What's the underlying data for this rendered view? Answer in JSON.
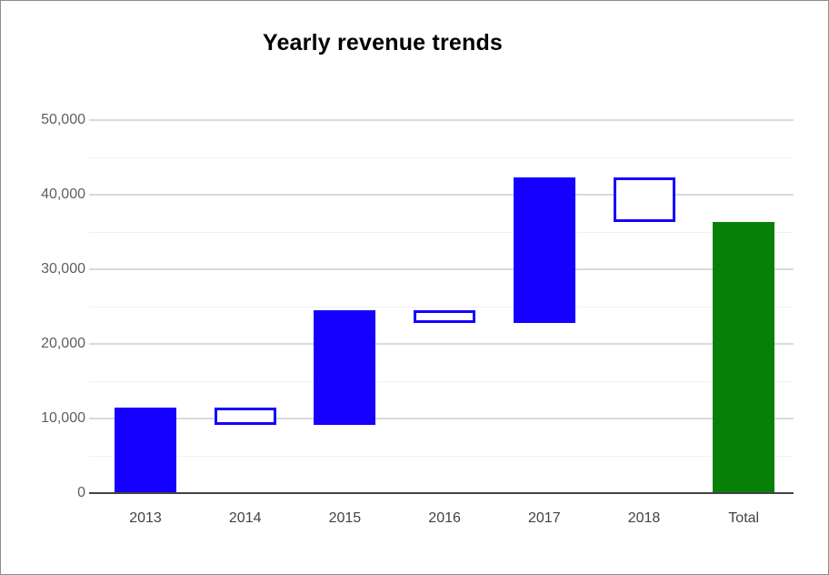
{
  "window": {
    "background": "#ffffff",
    "frame_border_color": "#8c8c8c"
  },
  "chart_data": {
    "type": "waterfall",
    "title": "Yearly revenue trends",
    "categories": [
      "2013",
      "2014",
      "2015",
      "2016",
      "2017",
      "2018",
      "Total"
    ],
    "bars": [
      {
        "label": "2013",
        "kind": "increase",
        "start": 0,
        "end": 11500,
        "change": 11500
      },
      {
        "label": "2014",
        "kind": "decrease",
        "start": 11500,
        "end": 9100,
        "change": -2400
      },
      {
        "label": "2015",
        "kind": "increase",
        "start": 9100,
        "end": 24500,
        "change": 15400
      },
      {
        "label": "2016",
        "kind": "decrease",
        "start": 24500,
        "end": 22800,
        "change": -1700
      },
      {
        "label": "2017",
        "kind": "increase",
        "start": 22800,
        "end": 42300,
        "change": 19500
      },
      {
        "label": "2018",
        "kind": "decrease",
        "start": 42300,
        "end": 36400,
        "change": -5900
      },
      {
        "label": "Total",
        "kind": "total",
        "start": 0,
        "end": 36400,
        "change": 36400
      }
    ],
    "total": 36400,
    "xlabel": "",
    "ylabel": "",
    "ylim": [
      0,
      50000
    ],
    "y_major_ticks": [
      0,
      10000,
      20000,
      30000,
      40000,
      50000
    ],
    "y_tick_labels": [
      "0",
      "10,000",
      "20,000",
      "30,000",
      "40,000",
      "50,000"
    ],
    "y_minor_ticks": [
      5000,
      15000,
      25000,
      35000,
      45000
    ],
    "grid": true,
    "legend_position": "none",
    "colors": {
      "increase_fill": "#1500ff",
      "decrease_fill": "#ffffff",
      "decrease_border": "#1500ff",
      "total_fill": "#088008",
      "grid_major": "#d9d9d9",
      "grid_minor": "#f1f1f1",
      "axis_line": "#424242",
      "y_tick_text": "#5f5f5f",
      "x_tick_text": "#424242",
      "title_text": "#000000"
    }
  }
}
